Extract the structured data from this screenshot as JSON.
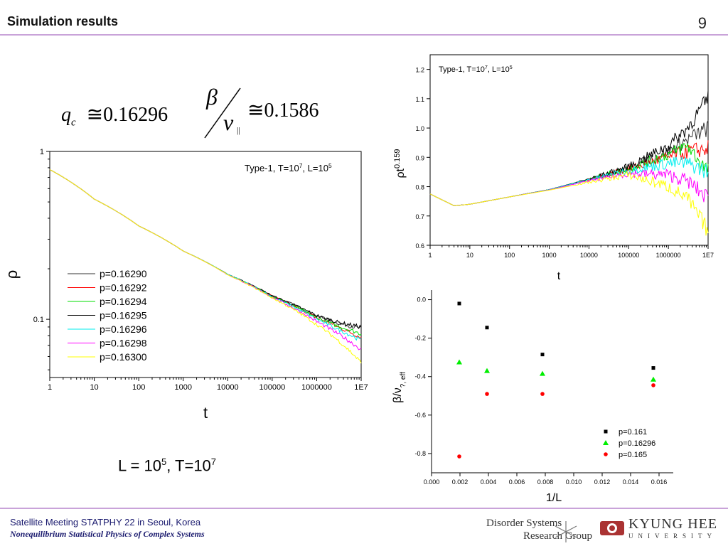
{
  "header": {
    "title": "Simulation results",
    "page_number": "9"
  },
  "formulas": {
    "qc_symbol": "q",
    "qc_sub": "c",
    "approx": "≅",
    "qc_value": "0.16296",
    "beta": "β",
    "nu": "ν",
    "nu_sub": "||",
    "ratio_value": "0.1586"
  },
  "caption": {
    "text": "L = 10",
    "exp": "5",
    "mid": ", T=10",
    "exp2": "7"
  },
  "footer": {
    "line1": "Satellite Meeting STATPHY 22 in Seoul, Korea",
    "line2": "Nonequilibrium Statistical Physics of Complex Systems",
    "logo1_line1": "Disorder Systems",
    "logo1_line2": "Research Group",
    "logo2_line1": "KYUNG HEE",
    "logo2_line2": "UNIVERSITY"
  },
  "colors": {
    "black": "#000000",
    "red": "#ff0000",
    "green": "#00dd00",
    "darkgray": "#333333",
    "cyan": "#00eeee",
    "magenta": "#ff00ff",
    "yellow": "#ffff00",
    "divider": "#c9a3d9"
  },
  "chart_data": [
    {
      "type": "line",
      "annotation": "Type-1, T=10^7, L=10^5",
      "annotation_parts": [
        "Type-1, T=10",
        "7",
        ", L=10",
        "5"
      ],
      "xlabel": "t",
      "ylabel": "ρ",
      "x_scale": "log",
      "y_scale": "log",
      "xlim": [
        1,
        10000000
      ],
      "ylim": [
        0.045,
        1
      ],
      "x_ticks": [
        "1",
        "10",
        "100",
        "1000",
        "10000",
        "100000",
        "1000000",
        "1E7"
      ],
      "y_ticks": [
        "0.1",
        "1"
      ],
      "legend_position": "bottom-left",
      "series": [
        {
          "name": "p=0.16290",
          "color": "#333333",
          "x": [
            1,
            10,
            100,
            1000,
            10000,
            100000,
            1000000,
            3000000,
            10000000
          ],
          "values": [
            0.78,
            0.52,
            0.36,
            0.255,
            0.185,
            0.138,
            0.105,
            0.095,
            0.088
          ]
        },
        {
          "name": "p=0.16292",
          "color": "#ff0000",
          "x": [
            1,
            10,
            100,
            1000,
            10000,
            100000,
            1000000,
            3000000,
            10000000
          ],
          "values": [
            0.78,
            0.52,
            0.36,
            0.255,
            0.185,
            0.137,
            0.102,
            0.09,
            0.078
          ]
        },
        {
          "name": "p=0.16294",
          "color": "#00dd00",
          "x": [
            1,
            10,
            100,
            1000,
            10000,
            100000,
            1000000,
            3000000,
            10000000
          ],
          "values": [
            0.78,
            0.52,
            0.36,
            0.255,
            0.185,
            0.137,
            0.102,
            0.091,
            0.082
          ]
        },
        {
          "name": "p=0.16295",
          "color": "#000000",
          "x": [
            1,
            10,
            100,
            1000,
            10000,
            100000,
            1000000,
            3000000,
            10000000
          ],
          "values": [
            0.78,
            0.52,
            0.36,
            0.255,
            0.185,
            0.138,
            0.105,
            0.096,
            0.09
          ]
        },
        {
          "name": "p=0.16296",
          "color": "#00eeee",
          "x": [
            1,
            10,
            100,
            1000,
            10000,
            100000,
            1000000,
            3000000,
            10000000
          ],
          "values": [
            0.78,
            0.52,
            0.36,
            0.255,
            0.185,
            0.136,
            0.1,
            0.087,
            0.075
          ]
        },
        {
          "name": "p=0.16298",
          "color": "#ff00ff",
          "x": [
            1,
            10,
            100,
            1000,
            10000,
            100000,
            1000000,
            3000000,
            10000000
          ],
          "values": [
            0.78,
            0.52,
            0.36,
            0.255,
            0.184,
            0.135,
            0.097,
            0.082,
            0.066
          ]
        },
        {
          "name": "p=0.16300",
          "color": "#ffff00",
          "x": [
            1,
            10,
            100,
            1000,
            10000,
            100000,
            1000000,
            3000000,
            10000000
          ],
          "values": [
            0.78,
            0.52,
            0.36,
            0.255,
            0.184,
            0.134,
            0.093,
            0.075,
            0.055
          ]
        }
      ]
    },
    {
      "type": "line",
      "annotation": "Type-1, T=10^7, L=10^5",
      "annotation_parts": [
        "Type-1, T=10",
        "7",
        ", L=10",
        "5"
      ],
      "xlabel": "t",
      "ylabel": "ρt^0.159",
      "ylabel_parts": [
        "ρt",
        "0.159"
      ],
      "x_scale": "log",
      "y_scale": "linear",
      "xlim": [
        1,
        10000000
      ],
      "ylim": [
        0.6,
        1.25
      ],
      "x_ticks": [
        "1",
        "10",
        "100",
        "1000",
        "10000",
        "100000",
        "1000000",
        "1E7"
      ],
      "y_ticks": [
        "0.6",
        "0.7",
        "0.8",
        "0.9",
        "1.0",
        "1.1",
        "1.2"
      ],
      "series": [
        {
          "name": "p=0.16290",
          "color": "#333333",
          "x": [
            1,
            4,
            10,
            100,
            1000,
            10000,
            100000,
            1000000,
            3000000,
            10000000
          ],
          "values": [
            0.775,
            0.735,
            0.74,
            0.765,
            0.79,
            0.825,
            0.865,
            0.92,
            0.96,
            1.0
          ]
        },
        {
          "name": "p=0.16292",
          "color": "#ff0000",
          "x": [
            1,
            4,
            10,
            100,
            1000,
            10000,
            100000,
            1000000,
            3000000,
            10000000
          ],
          "values": [
            0.775,
            0.735,
            0.74,
            0.765,
            0.79,
            0.825,
            0.86,
            0.9,
            0.92,
            0.93
          ]
        },
        {
          "name": "p=0.16294",
          "color": "#00dd00",
          "x": [
            1,
            4,
            10,
            100,
            1000,
            10000,
            100000,
            1000000,
            3000000,
            10000000
          ],
          "values": [
            0.775,
            0.735,
            0.74,
            0.765,
            0.79,
            0.825,
            0.862,
            0.91,
            0.94,
            0.85
          ]
        },
        {
          "name": "p=0.16295",
          "color": "#000000",
          "x": [
            1,
            4,
            10,
            100,
            1000,
            10000,
            100000,
            1000000,
            3000000,
            10000000
          ],
          "values": [
            0.775,
            0.735,
            0.74,
            0.765,
            0.79,
            0.826,
            0.868,
            0.94,
            1.0,
            1.1
          ]
        },
        {
          "name": "p=0.16296",
          "color": "#00eeee",
          "x": [
            1,
            4,
            10,
            100,
            1000,
            10000,
            100000,
            1000000,
            3000000,
            10000000
          ],
          "values": [
            0.775,
            0.735,
            0.74,
            0.765,
            0.79,
            0.824,
            0.855,
            0.88,
            0.88,
            0.85
          ]
        },
        {
          "name": "p=0.16298",
          "color": "#ff00ff",
          "x": [
            1,
            4,
            10,
            100,
            1000,
            10000,
            100000,
            1000000,
            3000000,
            10000000
          ],
          "values": [
            0.775,
            0.735,
            0.74,
            0.765,
            0.789,
            0.82,
            0.845,
            0.84,
            0.82,
            0.76
          ]
        },
        {
          "name": "p=0.16300",
          "color": "#ffff00",
          "x": [
            1,
            4,
            10,
            100,
            1000,
            10000,
            100000,
            1000000,
            3000000,
            10000000
          ],
          "values": [
            0.775,
            0.735,
            0.74,
            0.765,
            0.788,
            0.815,
            0.84,
            0.8,
            0.76,
            0.65
          ]
        }
      ]
    },
    {
      "type": "scatter",
      "xlabel": "1/L",
      "ylabel": "β/ν?, eff",
      "ylabel_parts": [
        "β/ν",
        "?, eff"
      ],
      "xlim": [
        0.0,
        0.017
      ],
      "ylim": [
        -0.9,
        0.05
      ],
      "x_ticks": [
        "0.000",
        "0.002",
        "0.004",
        "0.006",
        "0.008",
        "0.010",
        "0.012",
        "0.014",
        "0.016"
      ],
      "y_ticks": [
        "0.0",
        "-0.2",
        "-0.4",
        "-0.6",
        "-0.8"
      ],
      "legend_position": "bottom-right",
      "series": [
        {
          "name": "p=0.161",
          "marker": "square",
          "color": "#000000",
          "x": [
            0.00195,
            0.0039,
            0.0078,
            0.0156
          ],
          "values": [
            -0.02,
            -0.145,
            -0.285,
            -0.355
          ]
        },
        {
          "name": "p=0.16296",
          "marker": "triangle",
          "color": "#00ee00",
          "x": [
            0.00195,
            0.0039,
            0.0078,
            0.0156
          ],
          "values": [
            -0.325,
            -0.37,
            -0.385,
            -0.415
          ]
        },
        {
          "name": "p=0.165",
          "marker": "circle",
          "color": "#ff0000",
          "x": [
            0.00195,
            0.0039,
            0.0078,
            0.0156
          ],
          "values": [
            -0.815,
            -0.49,
            -0.49,
            -0.445
          ]
        }
      ]
    }
  ]
}
